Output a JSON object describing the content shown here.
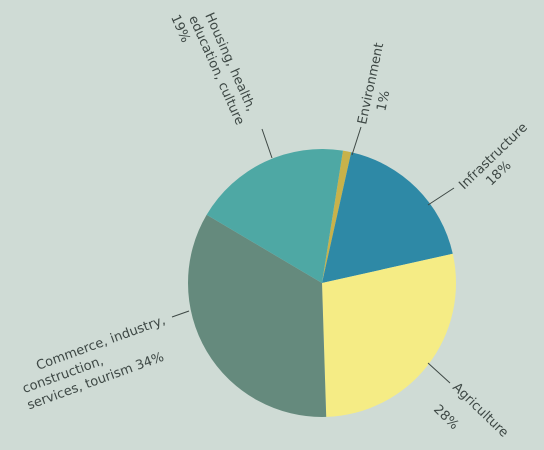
{
  "chart_data": {
    "type": "pie",
    "title": "",
    "slices": [
      {
        "label": "Environment",
        "pct_label": "1%",
        "value": 1,
        "color": "#c8b24a"
      },
      {
        "label": "Infrastructure",
        "pct_label": "18%",
        "value": 18,
        "color": "#2e89a6"
      },
      {
        "label": "Agriculture",
        "pct_label": "28%",
        "value": 28,
        "color": "#f5ec85"
      },
      {
        "label": "Commerce, industry, construction, services, tourism",
        "pct_label": "34%",
        "value": 34,
        "color": "#658a7d"
      },
      {
        "label": "Housing, health, education, culture",
        "pct_label": "19%",
        "value": 19,
        "color": "#4ea8a4"
      }
    ]
  }
}
